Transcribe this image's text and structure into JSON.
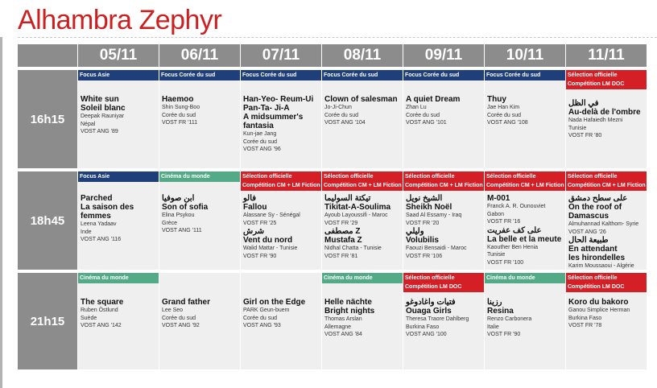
{
  "title": "Alhambra Zephyr",
  "dates": [
    "05/11",
    "06/11",
    "07/11",
    "08/11",
    "09/11",
    "10/11",
    "11/11"
  ],
  "times": [
    "16h15",
    "18h45",
    "21h15"
  ],
  "colors": {
    "focus": "#1f3f7a",
    "cinema": "#52ab86",
    "selection": "#d41f26",
    "header": "#8c8c8c",
    "title": "#cc1f1f"
  },
  "rows": [
    [
      {
        "band": "Focus Asie",
        "color": "blue",
        "lines": [
          {
            "t": "White sun"
          },
          {
            "t": "Soleil blanc"
          },
          {
            "s": "Deepak Rauniyar"
          },
          {
            "s": "Népal"
          },
          {
            "s": "VOST ANG   '89"
          }
        ]
      },
      {
        "band": "Focus Corée du sud",
        "color": "blue",
        "lines": [
          {
            "t": "Haemoo"
          },
          {
            "s": "Shin Sung-Boo"
          },
          {
            "s": "Corée du sud"
          },
          {
            "s": "VOST FR   '111"
          }
        ]
      },
      {
        "band": "Focus Corée du sud",
        "color": "blue",
        "lines": [
          {
            "t": "Han-Yeo- Reum-Ui"
          },
          {
            "t": "Pan-Ta- Ji-A"
          },
          {
            "t": "A midsummer's"
          },
          {
            "t": "fantasia"
          },
          {
            "s": "Kun-jae Jang"
          },
          {
            "s": "Corée du sud"
          },
          {
            "s": "VOST ANG   '96"
          }
        ]
      },
      {
        "band": "Focus Corée du sud",
        "color": "blue",
        "lines": [
          {
            "t": "Clown of salesman"
          },
          {
            "s": "Jo-Ji-Chun"
          },
          {
            "s": "Corée du sud"
          },
          {
            "s": "VOST ANG   '104"
          }
        ]
      },
      {
        "band": "Focus Corée du sud",
        "color": "blue",
        "lines": [
          {
            "t": "A quiet Dream"
          },
          {
            "s": "Zhan Lu"
          },
          {
            "s": "Corée du sud"
          },
          {
            "s": "VOST ANG   '101"
          }
        ]
      },
      {
        "band": "Focus Corée du sud",
        "color": "blue",
        "lines": [
          {
            "t": "Thuy"
          },
          {
            "s": "Jae Han Kim"
          },
          {
            "s": "Corée du sud"
          },
          {
            "s": "VOST ANG   '108"
          }
        ]
      },
      {
        "band": "Sélection officielle",
        "band2": "Compétition LM  DOC",
        "color": "red",
        "lines": [
          {
            "t": "في الظل"
          },
          {
            "t": "Au-delà de l'ombre"
          },
          {
            "s": "Nada Hafaiedh Mezni"
          },
          {
            "s": "Tunisie"
          },
          {
            "s": "VOST FR   '80"
          }
        ]
      }
    ],
    [
      {
        "band": "Focus Asie",
        "color": "blue",
        "lines": [
          {
            "t": "Parched"
          },
          {
            "t": "La saison des"
          },
          {
            "t": "femmes"
          },
          {
            "s": "Leena Yadaav"
          },
          {
            "s": "Inde"
          },
          {
            "s": "VOST ANG   '116"
          }
        ]
      },
      {
        "band": "Cinéma du monde",
        "color": "green",
        "lines": [
          {
            "t": "ابن صوفيا"
          },
          {
            "t": "Son of sofia"
          },
          {
            "s": "Elina Psykou"
          },
          {
            "s": "Grèce"
          },
          {
            "s": "VOST ANG   '111"
          }
        ]
      },
      {
        "band": "Sélection officielle",
        "band2": "Compétition CM + LM  Fiction",
        "color": "red",
        "lines": [
          {
            "t": "فالو"
          },
          {
            "t": "Fallou"
          },
          {
            "s": "Alassane Sy - Sénégal"
          },
          {
            "s": "VOST FR   '25"
          },
          {
            "t": "شرش"
          },
          {
            "t": "Vent du nord"
          },
          {
            "s": "Walid Mattar - Tunisie"
          },
          {
            "s": "VOST FR   '90"
          }
        ]
      },
      {
        "band": "Sélection officielle",
        "band2": "Compétition CM + LM  Fiction",
        "color": "red",
        "lines": [
          {
            "t": "تيكتة السوليما"
          },
          {
            "t": "Tikitat-A-Soulima"
          },
          {
            "s": "Ayoub Layoussifi - Maroc"
          },
          {
            "s": "VOST FR   '29"
          },
          {
            "t": "مصطفى Z"
          },
          {
            "t": "Mustafa Z"
          },
          {
            "s": "Nidhal Chatta - Tunisie"
          },
          {
            "s": "VOST FR   '81"
          }
        ]
      },
      {
        "band": "Sélection officielle",
        "band2": "Compétition CM + LM  Fiction",
        "color": "red",
        "lines": [
          {
            "t": "الشيخ نويل"
          },
          {
            "t": "Sheikh Noël"
          },
          {
            "s": "Saad Al Essamy - Iraq"
          },
          {
            "s": "VOST FR   '20"
          },
          {
            "t": "وليلي"
          },
          {
            "t": "Volubilis"
          },
          {
            "s": "Faouzi Bensaidi - Maroc"
          },
          {
            "s": "VOST FR   '106"
          }
        ]
      },
      {
        "band": "Sélection officielle",
        "band2": "Compétition CM + LM  Fiction",
        "color": "red",
        "lines": [
          {
            "t": "M-001"
          },
          {
            "s": "Franck A. R. Ounouviet"
          },
          {
            "s": "Gabon"
          },
          {
            "s": "VOST FR   '16"
          },
          {
            "t": "على كف عفريت"
          },
          {
            "t": "La belle et la meute"
          },
          {
            "s": "Kaouther Ben Henia"
          },
          {
            "s": "Tunisie"
          },
          {
            "s": "VOST FR   '100"
          }
        ]
      },
      {
        "band": "Sélection officielle",
        "band2": "Compétition CM + LM  Fiction",
        "color": "red",
        "lines": [
          {
            "t": "على سطح دمشق"
          },
          {
            "t": "On the roof of Damascus"
          },
          {
            "s": "Almuhannad Kalthom- Syrie"
          },
          {
            "s": "VOST ANG   '26"
          },
          {
            "t": "طبيعة الحال"
          },
          {
            "t": "En attendant"
          },
          {
            "t": "les hirondelles"
          },
          {
            "s": "Karim Moussaoui - Algérie"
          },
          {
            "s": "VOST FR   '113"
          }
        ]
      }
    ],
    [
      {
        "band": "Cinéma du monde",
        "color": "green",
        "lines": [
          {
            "t": "The square"
          },
          {
            "s": "Ruben Östlund"
          },
          {
            "s": "Suède"
          },
          {
            "s": "VOST ANG   '142"
          }
        ]
      },
      {
        "band": "",
        "color": "none",
        "lines": [
          {
            "t": "Grand father"
          },
          {
            "s": "Lee Seo"
          },
          {
            "s": "Corée du sud"
          },
          {
            "s": "VOST ANG   '92"
          }
        ]
      },
      {
        "band": "",
        "color": "none",
        "lines": [
          {
            "t": "Girl on the Edge"
          },
          {
            "s": "PARK Geun-buem"
          },
          {
            "s": "Corée du sud"
          },
          {
            "s": "VOST ANG   '93"
          }
        ]
      },
      {
        "band": "Cinéma du monde",
        "color": "green",
        "lines": [
          {
            "t": "Helle nächte"
          },
          {
            "t": "Bright nights"
          },
          {
            "s": "Thomas Arslan"
          },
          {
            "s": "Allemagne"
          },
          {
            "s": "VOST ANG   '84"
          }
        ]
      },
      {
        "band": "Sélection officielle",
        "band2": "Compétition LM  DOC",
        "color": "red",
        "lines": [
          {
            "t": "فتيات واغادوغو"
          },
          {
            "t": "Ouaga Girls"
          },
          {
            "s": "Theresa Traore Dahlberg"
          },
          {
            "s": "Burkina Faso"
          },
          {
            "s": "VOST ANG   '100"
          }
        ]
      },
      {
        "band": "Cinéma du monde",
        "color": "green",
        "lines": [
          {
            "t": "رزينا"
          },
          {
            "t": "Resina"
          },
          {
            "s": "Renzo Carbonera"
          },
          {
            "s": "Italie"
          },
          {
            "s": "VOST FR   '90"
          }
        ]
      },
      {
        "band": "Sélection officielle",
        "band2": "Compétition LM  DOC",
        "color": "red",
        "lines": [
          {
            "t": "Koro du bakoro"
          },
          {
            "s": "Ganou Simplice Herman"
          },
          {
            "s": "Burkina Faso"
          },
          {
            "s": "VOST FR   '78"
          }
        ]
      }
    ]
  ]
}
